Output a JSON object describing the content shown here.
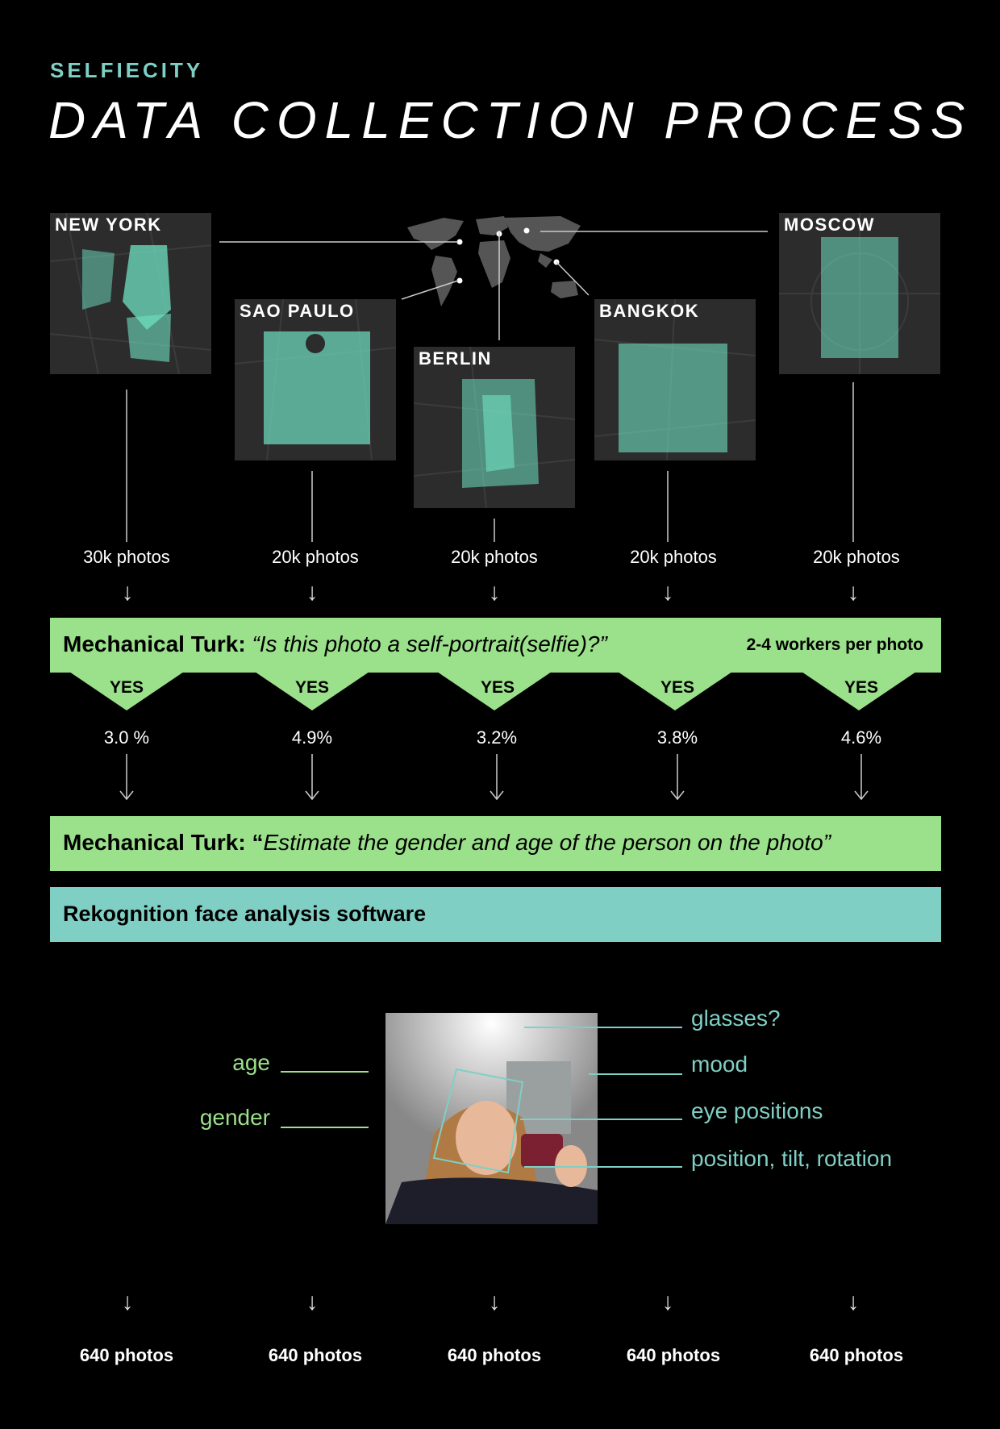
{
  "header": {
    "brand": "SELFIECITY",
    "title": "DATA COLLECTION PROCESS"
  },
  "cities": [
    {
      "name": "NEW YORK",
      "count": "30k photos",
      "rate": "3.0 %",
      "final": "640 photos"
    },
    {
      "name": "SAO PAULO",
      "count": "20k photos",
      "rate": "4.9%",
      "final": "640 photos"
    },
    {
      "name": "BERLIN",
      "count": "20k photos",
      "rate": "3.2%",
      "final": "640 photos"
    },
    {
      "name": "BANGKOK",
      "count": "20k photos",
      "rate": "3.8%",
      "final": "640 photos"
    },
    {
      "name": "MOSCOW",
      "count": "20k photos",
      "rate": "4.6%",
      "final": "640 photos"
    }
  ],
  "step1": {
    "label": "Mechanical Turk:",
    "question": "“Is this photo a self-portrait(selfie)?”",
    "workers": "2-4 workers per photo",
    "yes": "YES"
  },
  "step2": {
    "label": "Mechanical Turk:",
    "quote_open": "“",
    "question": "Estimate the gender and age of the person on the photo”"
  },
  "step3": {
    "label": "Rekognition face analysis software"
  },
  "attributes": {
    "left": [
      "age",
      "gender"
    ],
    "right": [
      "glasses?",
      "mood",
      "eye positions",
      "position, tilt, rotation"
    ]
  },
  "colors": {
    "green": "#9be08a",
    "teal": "#7fcfc5",
    "map_dots": "#6fe0c2"
  }
}
